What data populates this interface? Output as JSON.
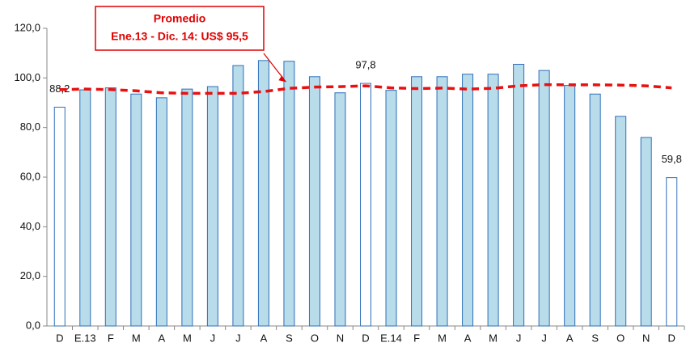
{
  "chart_data": {
    "type": "bar",
    "categories": [
      "D",
      "E.13",
      "F",
      "M",
      "A",
      "M",
      "J",
      "J",
      "A",
      "S",
      "O",
      "N",
      "D",
      "E.14",
      "F",
      "M",
      "A",
      "M",
      "J",
      "J",
      "A",
      "S",
      "O",
      "N",
      "D"
    ],
    "values": [
      88.2,
      95.2,
      96,
      93.5,
      92,
      95.5,
      96.5,
      105,
      107,
      106.7,
      100.5,
      94,
      97.8,
      95,
      100.5,
      100.5,
      101.5,
      101.5,
      105.5,
      103,
      97,
      93.5,
      84.5,
      76,
      59.8
    ],
    "value_labels": [
      "88,2",
      null,
      null,
      null,
      null,
      null,
      null,
      null,
      null,
      null,
      null,
      null,
      "97,8",
      null,
      null,
      null,
      null,
      null,
      null,
      null,
      null,
      null,
      null,
      null,
      "59,8"
    ],
    "colors": [
      "#ffffff",
      "#b8dcea",
      "#b8dcea",
      "#b8dcea",
      "#b8dcea",
      "#b8dcea",
      "#b8dcea",
      "#b8dcea",
      "#b8dcea",
      "#b8dcea",
      "#b8dcea",
      "#b8dcea",
      "#ffffff",
      "#b8dcea",
      "#b8dcea",
      "#b8dcea",
      "#b8dcea",
      "#b8dcea",
      "#b8dcea",
      "#b8dcea",
      "#b8dcea",
      "#b8dcea",
      "#b8dcea",
      "#b8dcea",
      "#ffffff"
    ],
    "border_color": "#2e6fb8",
    "trend": {
      "color": "#e81010",
      "values": [
        95.3,
        95.5,
        95.3,
        94.8,
        94,
        93.8,
        93.8,
        93.8,
        94.5,
        95.8,
        96.3,
        96.5,
        96.8,
        96,
        95.7,
        95.9,
        95.5,
        95.8,
        96.8,
        97.3,
        97.2,
        97.2,
        97.1,
        96.8,
        96
      ]
    },
    "annotation": {
      "title": "Promedio",
      "text": "Ene.13 - Dic. 14: US$ 95,5",
      "color": "#e00000"
    },
    "ylim": [
      0,
      120
    ],
    "yticks": [
      {
        "value": 0,
        "label": "0,0"
      },
      {
        "value": 20,
        "label": "20,0"
      },
      {
        "value": 40,
        "label": "40,0"
      },
      {
        "value": 60,
        "label": "60,0"
      },
      {
        "value": 80,
        "label": "80,0"
      },
      {
        "value": 100,
        "label": "100,0"
      },
      {
        "value": 120,
        "label": "120,0"
      }
    ],
    "grid": false
  }
}
